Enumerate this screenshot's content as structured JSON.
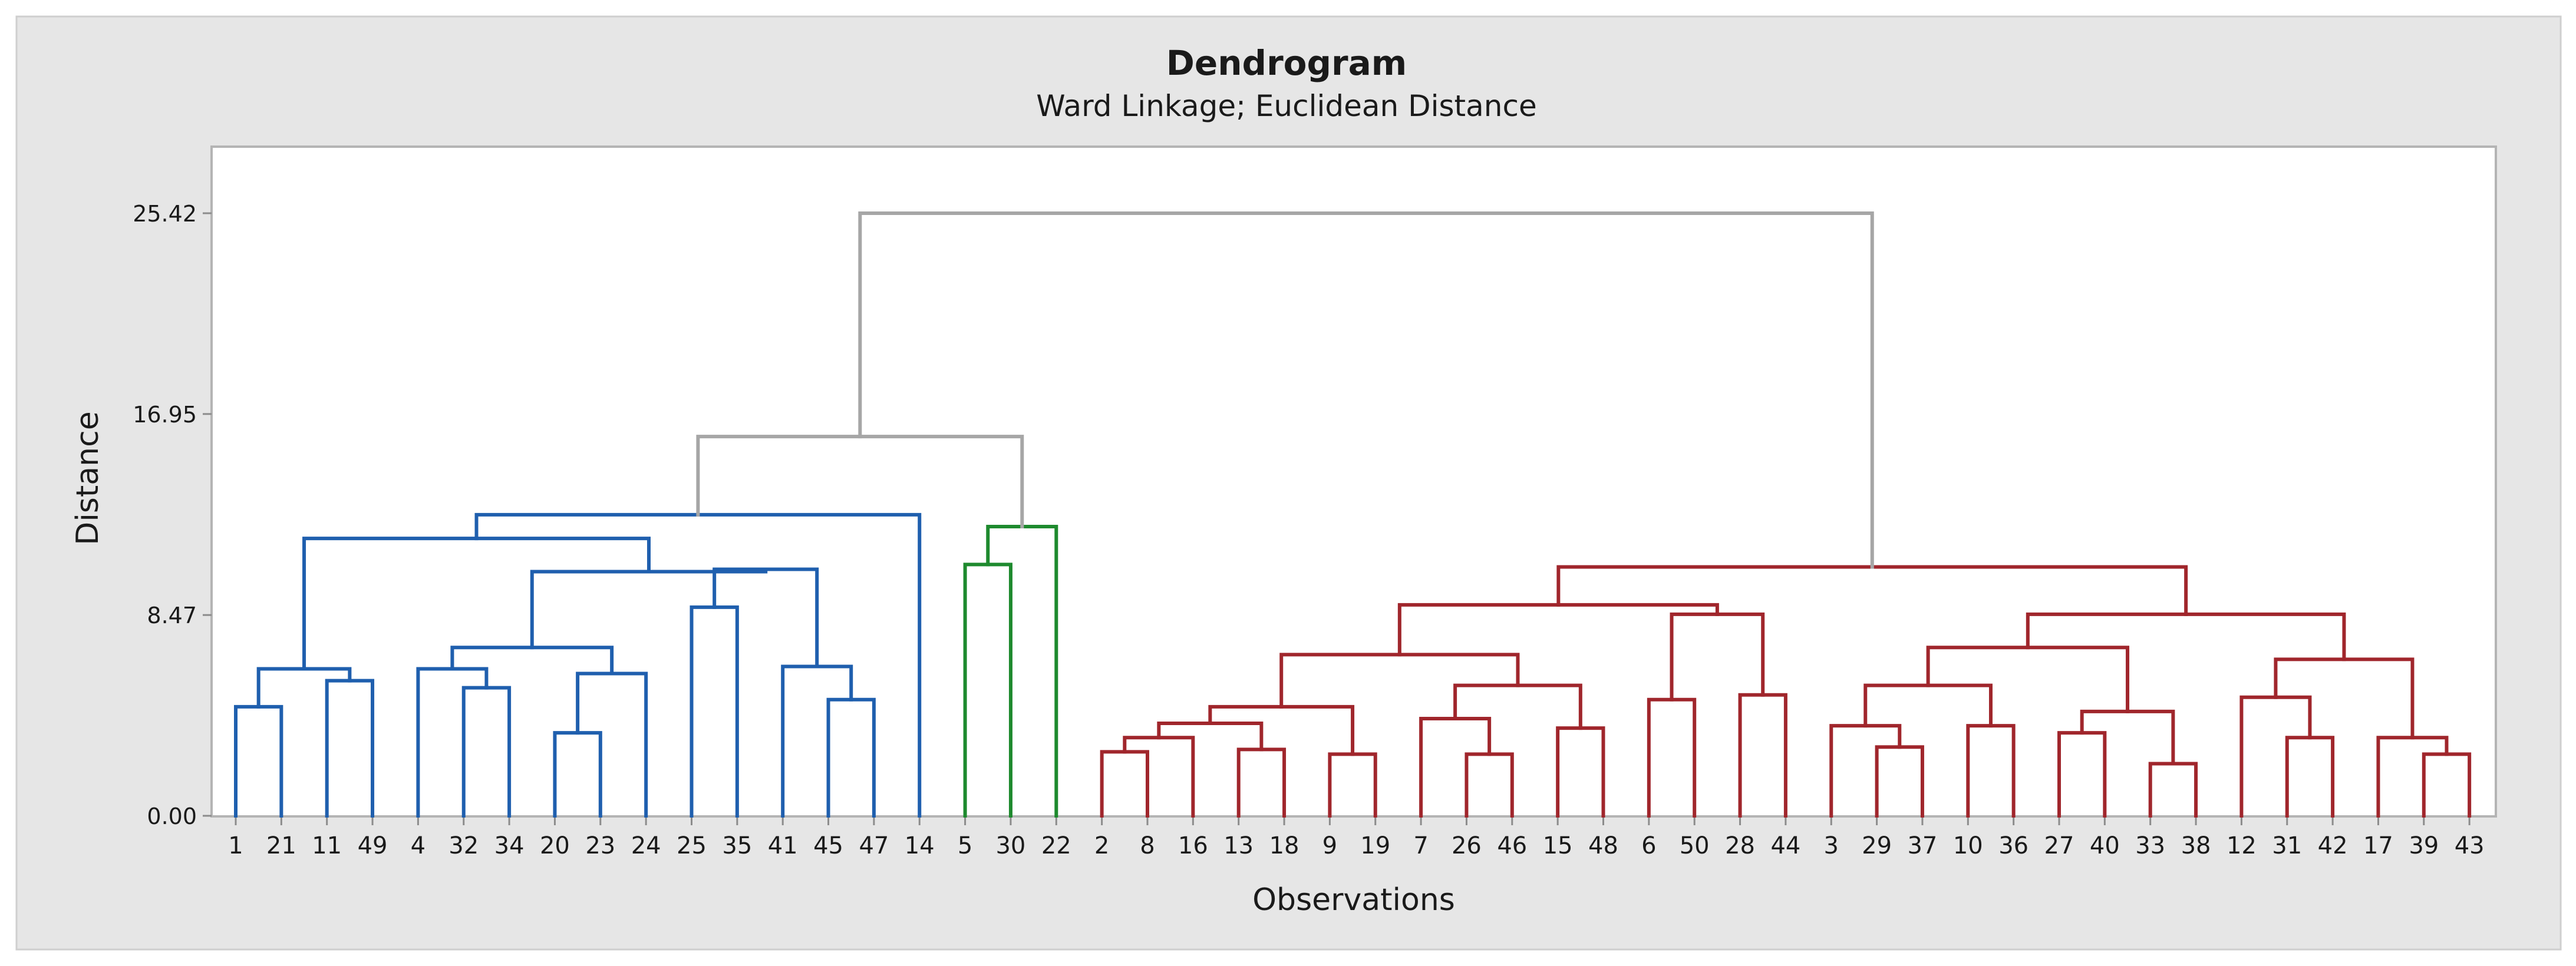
{
  "chart_data": {
    "type": "dendrogram",
    "title": "Dendrogram",
    "subtitle": "Ward Linkage; Euclidean Distance",
    "xlabel": "Observations",
    "ylabel": "Distance",
    "ylim": [
      0,
      25.42
    ],
    "yticks": [
      0.0,
      8.47,
      16.95,
      25.42
    ],
    "ytick_labels": [
      "0.00",
      "8.47",
      "16.95",
      "25.42"
    ],
    "grid": false,
    "leaves": [
      1,
      21,
      11,
      49,
      4,
      32,
      34,
      20,
      23,
      24,
      25,
      35,
      41,
      45,
      47,
      14,
      5,
      30,
      22,
      2,
      8,
      16,
      13,
      18,
      9,
      19,
      7,
      26,
      46,
      15,
      48,
      6,
      50,
      28,
      44,
      3,
      29,
      37,
      10,
      36,
      27,
      40,
      33,
      38,
      12,
      31,
      42,
      17,
      39,
      43
    ],
    "clusters": [
      {
        "name": "cluster-1",
        "color": "#1f5fae",
        "leaves": [
          1,
          21,
          11,
          49,
          4,
          32,
          34,
          20,
          23,
          24,
          25,
          35,
          41,
          45,
          47,
          14
        ]
      },
      {
        "name": "cluster-2",
        "color": "#1e8a2e",
        "leaves": [
          5,
          30,
          22
        ]
      },
      {
        "name": "cluster-3",
        "color": "#a0262c",
        "leaves": [
          2,
          8,
          16,
          13,
          18,
          9,
          19,
          7,
          26,
          46,
          15,
          48,
          6,
          50,
          28,
          44,
          3,
          29,
          37,
          10,
          36,
          27,
          40,
          33,
          38,
          12,
          31,
          42,
          17,
          39,
          43
        ]
      }
    ],
    "link_color": "#a6a6a6",
    "merges": [
      {
        "a": 1,
        "b": 21,
        "h": 4.6,
        "cl": 0
      },
      {
        "a": 11,
        "b": 49,
        "h": 5.7,
        "cl": 0
      },
      {
        "a": "m0",
        "b": "m1",
        "h": 6.2,
        "cl": 0
      },
      {
        "a": 32,
        "b": 34,
        "h": 5.4,
        "cl": 0
      },
      {
        "a": 4,
        "b": "m3",
        "h": 6.2,
        "cl": 0
      },
      {
        "a": 20,
        "b": 23,
        "h": 3.5,
        "cl": 0
      },
      {
        "a": "m5",
        "b": 24,
        "h": 6.0,
        "cl": 0
      },
      {
        "a": "m4",
        "b": "m6",
        "h": 7.1,
        "cl": 0
      },
      {
        "a": 25,
        "b": 35,
        "h": 8.8,
        "cl": 0
      },
      {
        "a": 45,
        "b": 47,
        "h": 4.9,
        "cl": 0
      },
      {
        "a": 41,
        "b": "m9",
        "h": 6.3,
        "cl": 0
      },
      {
        "a": "m8",
        "b": "m10",
        "h": 10.4,
        "cl": 0
      },
      {
        "a": "m7",
        "b": "m11",
        "h": 10.3,
        "cl": 0
      },
      {
        "a": "m2",
        "b": "m12",
        "h": 11.7,
        "cl": 0
      },
      {
        "a": "m13",
        "b": 14,
        "h": 12.7,
        "cl": 0
      },
      {
        "a": 5,
        "b": 30,
        "h": 10.6,
        "cl": 1
      },
      {
        "a": "m15",
        "b": 22,
        "h": 12.2,
        "cl": 1
      },
      {
        "a": "m14",
        "b": "m16",
        "h": 16.0,
        "cl": -1
      },
      {
        "a": 2,
        "b": 8,
        "h": 2.7,
        "cl": 2
      },
      {
        "a": "m18",
        "b": 16,
        "h": 3.3,
        "cl": 2
      },
      {
        "a": 13,
        "b": 18,
        "h": 2.8,
        "cl": 2
      },
      {
        "a": "m19",
        "b": "m20",
        "h": 3.9,
        "cl": 2
      },
      {
        "a": 9,
        "b": 19,
        "h": 2.6,
        "cl": 2
      },
      {
        "a": "m21",
        "b": "m22",
        "h": 4.6,
        "cl": 2
      },
      {
        "a": 26,
        "b": 46,
        "h": 2.6,
        "cl": 2
      },
      {
        "a": 7,
        "b": "m24",
        "h": 4.1,
        "cl": 2
      },
      {
        "a": 15,
        "b": 48,
        "h": 3.7,
        "cl": 2
      },
      {
        "a": "m25",
        "b": "m26",
        "h": 5.5,
        "cl": 2
      },
      {
        "a": "m23",
        "b": "m27",
        "h": 6.8,
        "cl": 2
      },
      {
        "a": 6,
        "b": 50,
        "h": 4.9,
        "cl": 2
      },
      {
        "a": 28,
        "b": 44,
        "h": 5.1,
        "cl": 2
      },
      {
        "a": "m29",
        "b": "m30",
        "h": 8.5,
        "cl": 2
      },
      {
        "a": "m28",
        "b": "m31",
        "h": 8.9,
        "cl": 2
      },
      {
        "a": 29,
        "b": 37,
        "h": 2.9,
        "cl": 2
      },
      {
        "a": 3,
        "b": "m33",
        "h": 3.8,
        "cl": 2
      },
      {
        "a": 10,
        "b": 36,
        "h": 3.8,
        "cl": 2
      },
      {
        "a": "m34",
        "b": "m35",
        "h": 5.5,
        "cl": 2
      },
      {
        "a": 27,
        "b": 40,
        "h": 3.5,
        "cl": 2
      },
      {
        "a": 33,
        "b": 38,
        "h": 2.2,
        "cl": 2
      },
      {
        "a": "m37",
        "b": "m38",
        "h": 4.4,
        "cl": 2
      },
      {
        "a": "m36",
        "b": "m39",
        "h": 7.1,
        "cl": 2
      },
      {
        "a": 31,
        "b": 42,
        "h": 3.3,
        "cl": 2
      },
      {
        "a": 12,
        "b": "m41",
        "h": 5.0,
        "cl": 2
      },
      {
        "a": 39,
        "b": 43,
        "h": 2.6,
        "cl": 2
      },
      {
        "a": 17,
        "b": "m43",
        "h": 3.3,
        "cl": 2
      },
      {
        "a": "m42",
        "b": "m44",
        "h": 6.6,
        "cl": 2
      },
      {
        "a": "m40",
        "b": "m45",
        "h": 8.5,
        "cl": 2
      },
      {
        "a": "m32",
        "b": "m46",
        "h": 10.5,
        "cl": 2
      },
      {
        "a": "m17",
        "b": "m47",
        "h": 25.42,
        "cl": -1
      }
    ]
  }
}
